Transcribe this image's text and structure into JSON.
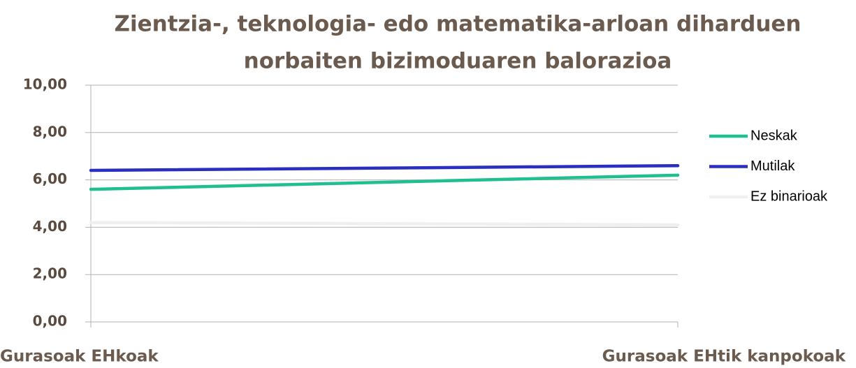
{
  "chart_data": {
    "type": "line",
    "title": [
      "Zientzia-, teknologia- edo matematika-arloan diharduen",
      "norbaiten bizimoduaren balorazioa"
    ],
    "categories": [
      "Gurasoak EHkoak",
      "Gurasoak EHtik kanpokoak"
    ],
    "series": [
      {
        "name": "Neskak",
        "color": "#1fbf8f",
        "values": [
          5.6,
          6.2
        ]
      },
      {
        "name": "Mutilak",
        "color": "#2b2fbf",
        "values": [
          6.4,
          6.6
        ]
      },
      {
        "name": "Ez binarioak",
        "color": "#efefef",
        "values": [
          4.2,
          4.1
        ]
      }
    ],
    "ylim": [
      0,
      10
    ],
    "yticks": [
      {
        "value": 0,
        "label": "0,00"
      },
      {
        "value": 2,
        "label": "2,00"
      },
      {
        "value": 4,
        "label": "4,00"
      },
      {
        "value": 6,
        "label": "6,00"
      },
      {
        "value": 8,
        "label": "8,00"
      },
      {
        "value": 10,
        "label": "10,00"
      }
    ],
    "grid": true,
    "legend": "right"
  }
}
